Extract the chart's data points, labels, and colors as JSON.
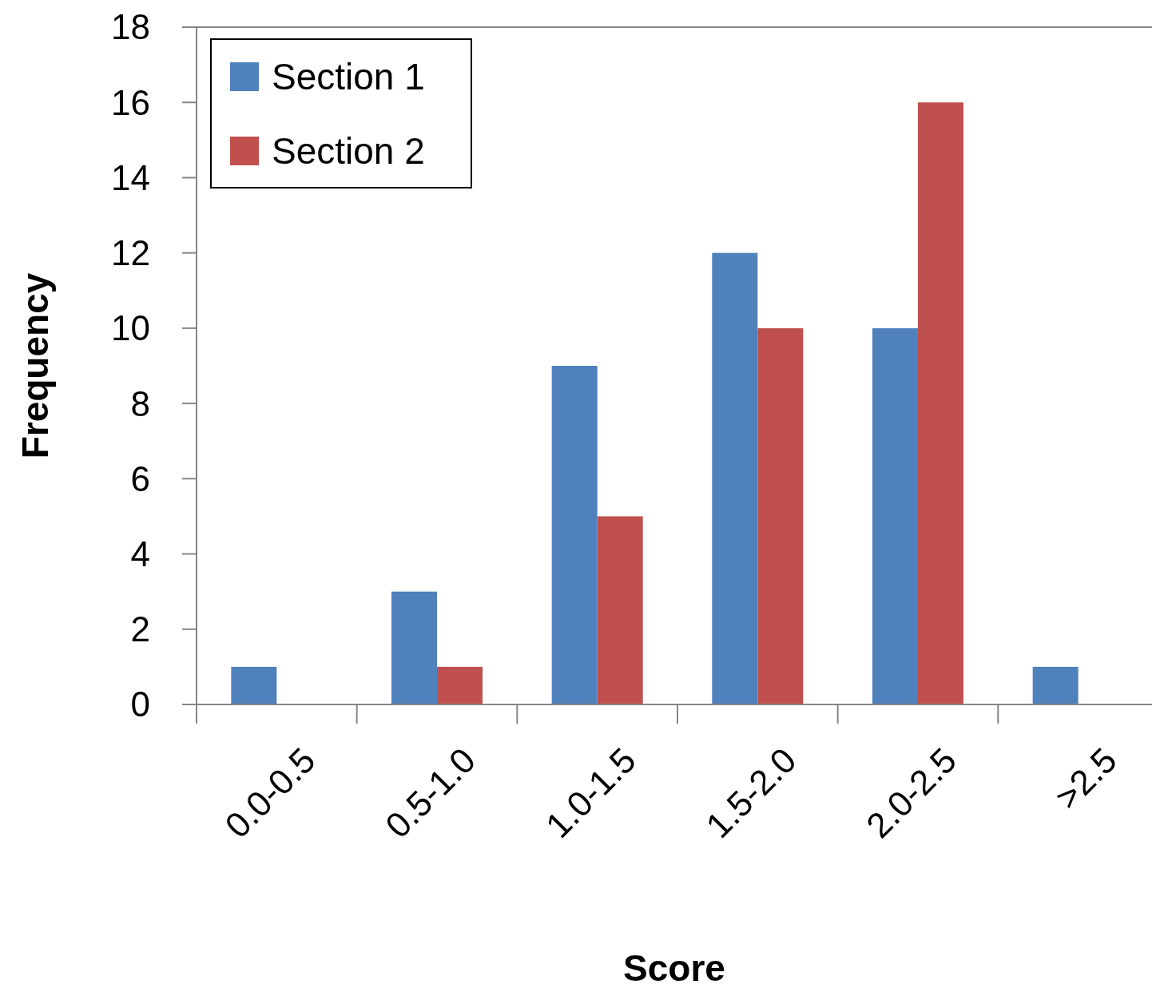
{
  "chart_data": {
    "type": "bar",
    "xlabel": "Score",
    "ylabel": "Frequency",
    "categories": [
      "0.0-0.5",
      "0.5-1.0",
      "1.0-1.5",
      "1.5-2.0",
      "2.0-2.5",
      ">2.5"
    ],
    "series": [
      {
        "name": "Section 1",
        "color": "#4f81bd",
        "values": [
          1,
          3,
          9,
          12,
          10,
          1
        ]
      },
      {
        "name": "Section 2",
        "color": "#c0504d",
        "values": [
          0,
          1,
          5,
          10,
          16,
          0
        ]
      }
    ],
    "ylim": [
      0,
      18
    ],
    "yticks": [
      0,
      2,
      4,
      6,
      8,
      10,
      12,
      14,
      16,
      18
    ],
    "grid": false,
    "legend": "top left"
  }
}
